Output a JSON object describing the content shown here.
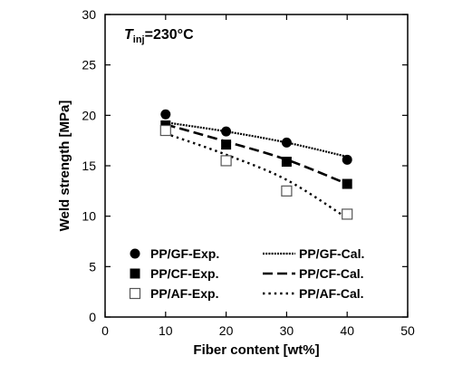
{
  "chart_data": {
    "type": "scatter",
    "title": "",
    "xlabel": "Fiber content [wt%]",
    "ylabel": "Weld strength [MPa]",
    "xlim": [
      0,
      50
    ],
    "ylim": [
      0,
      30
    ],
    "xticks": [
      "0",
      "10",
      "20",
      "30",
      "40",
      "50"
    ],
    "yticks": [
      "0",
      "5",
      "10",
      "15",
      "20",
      "25",
      "30"
    ],
    "grid": false,
    "legend_position": "bottom",
    "annotation": {
      "main": "T",
      "subscript": "inj",
      "rest": "=230°C"
    },
    "series": [
      {
        "name": "PP/GF-Exp.",
        "kind": "points",
        "marker": "filled-circle",
        "x": [
          10,
          20,
          30,
          40
        ],
        "y": [
          20.1,
          18.4,
          17.3,
          15.6
        ]
      },
      {
        "name": "PP/CF-Exp.",
        "kind": "points",
        "marker": "filled-square",
        "x": [
          10,
          20,
          30,
          40
        ],
        "y": [
          19.0,
          17.1,
          15.4,
          13.2
        ]
      },
      {
        "name": "PP/AF-Exp.",
        "kind": "points",
        "marker": "open-square",
        "x": [
          10,
          20,
          30,
          40
        ],
        "y": [
          18.5,
          15.5,
          12.5,
          10.2
        ]
      },
      {
        "name": "PP/GF-Cal.",
        "kind": "line",
        "dash": "densely-dotted",
        "x": [
          10,
          20,
          30,
          40
        ],
        "y": [
          19.3,
          18.4,
          17.3,
          15.9
        ]
      },
      {
        "name": "PP/CF-Cal.",
        "kind": "line",
        "dash": "long-dash",
        "x": [
          10,
          20,
          30,
          40
        ],
        "y": [
          19.1,
          17.4,
          15.6,
          13.2
        ]
      },
      {
        "name": "PP/AF-Cal.",
        "kind": "line",
        "dash": "dotted",
        "x": [
          10,
          20,
          30,
          40
        ],
        "y": [
          18.2,
          16.1,
          13.6,
          9.8
        ]
      }
    ]
  }
}
